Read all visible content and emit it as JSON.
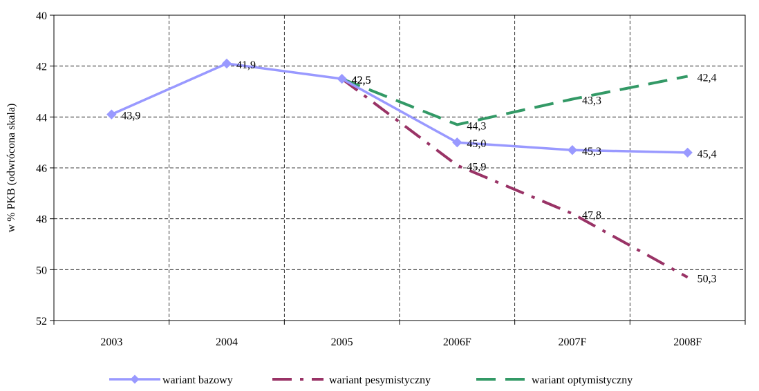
{
  "chart_data": {
    "type": "line",
    "categories": [
      "2003",
      "2004",
      "2005",
      "2006F",
      "2007F",
      "2008F"
    ],
    "ylabel": "w % PKB (odwrócona skala)",
    "ylim": [
      40,
      52
    ],
    "y_inverted": true,
    "y_ticks": [
      40,
      42,
      44,
      46,
      48,
      50,
      52
    ],
    "grid": true,
    "legend_position": "bottom",
    "series": [
      {
        "name": "wariant bazowy",
        "values": [
          43.9,
          41.9,
          42.5,
          45.0,
          45.3,
          45.4
        ],
        "labels": [
          "43,9",
          "41,9",
          "42,5",
          "45,0",
          "45,3",
          "45,4"
        ],
        "color": "#9999ff",
        "style": "solid",
        "marker": "diamond"
      },
      {
        "name": "wariant pesymistyczny",
        "values": [
          null,
          null,
          42.5,
          45.9,
          47.8,
          50.3
        ],
        "labels": [
          "",
          "",
          "42,5",
          "45,9",
          "47,8",
          "50,3"
        ],
        "color": "#993366",
        "style": "dash-dot",
        "marker": "none"
      },
      {
        "name": "wariant optymistyczny",
        "values": [
          null,
          null,
          42.5,
          44.3,
          43.3,
          42.4
        ],
        "labels": [
          "",
          "",
          "42,5",
          "44,3",
          "43,3",
          "42,4"
        ],
        "color": "#339966",
        "style": "dash",
        "marker": "none"
      }
    ]
  }
}
